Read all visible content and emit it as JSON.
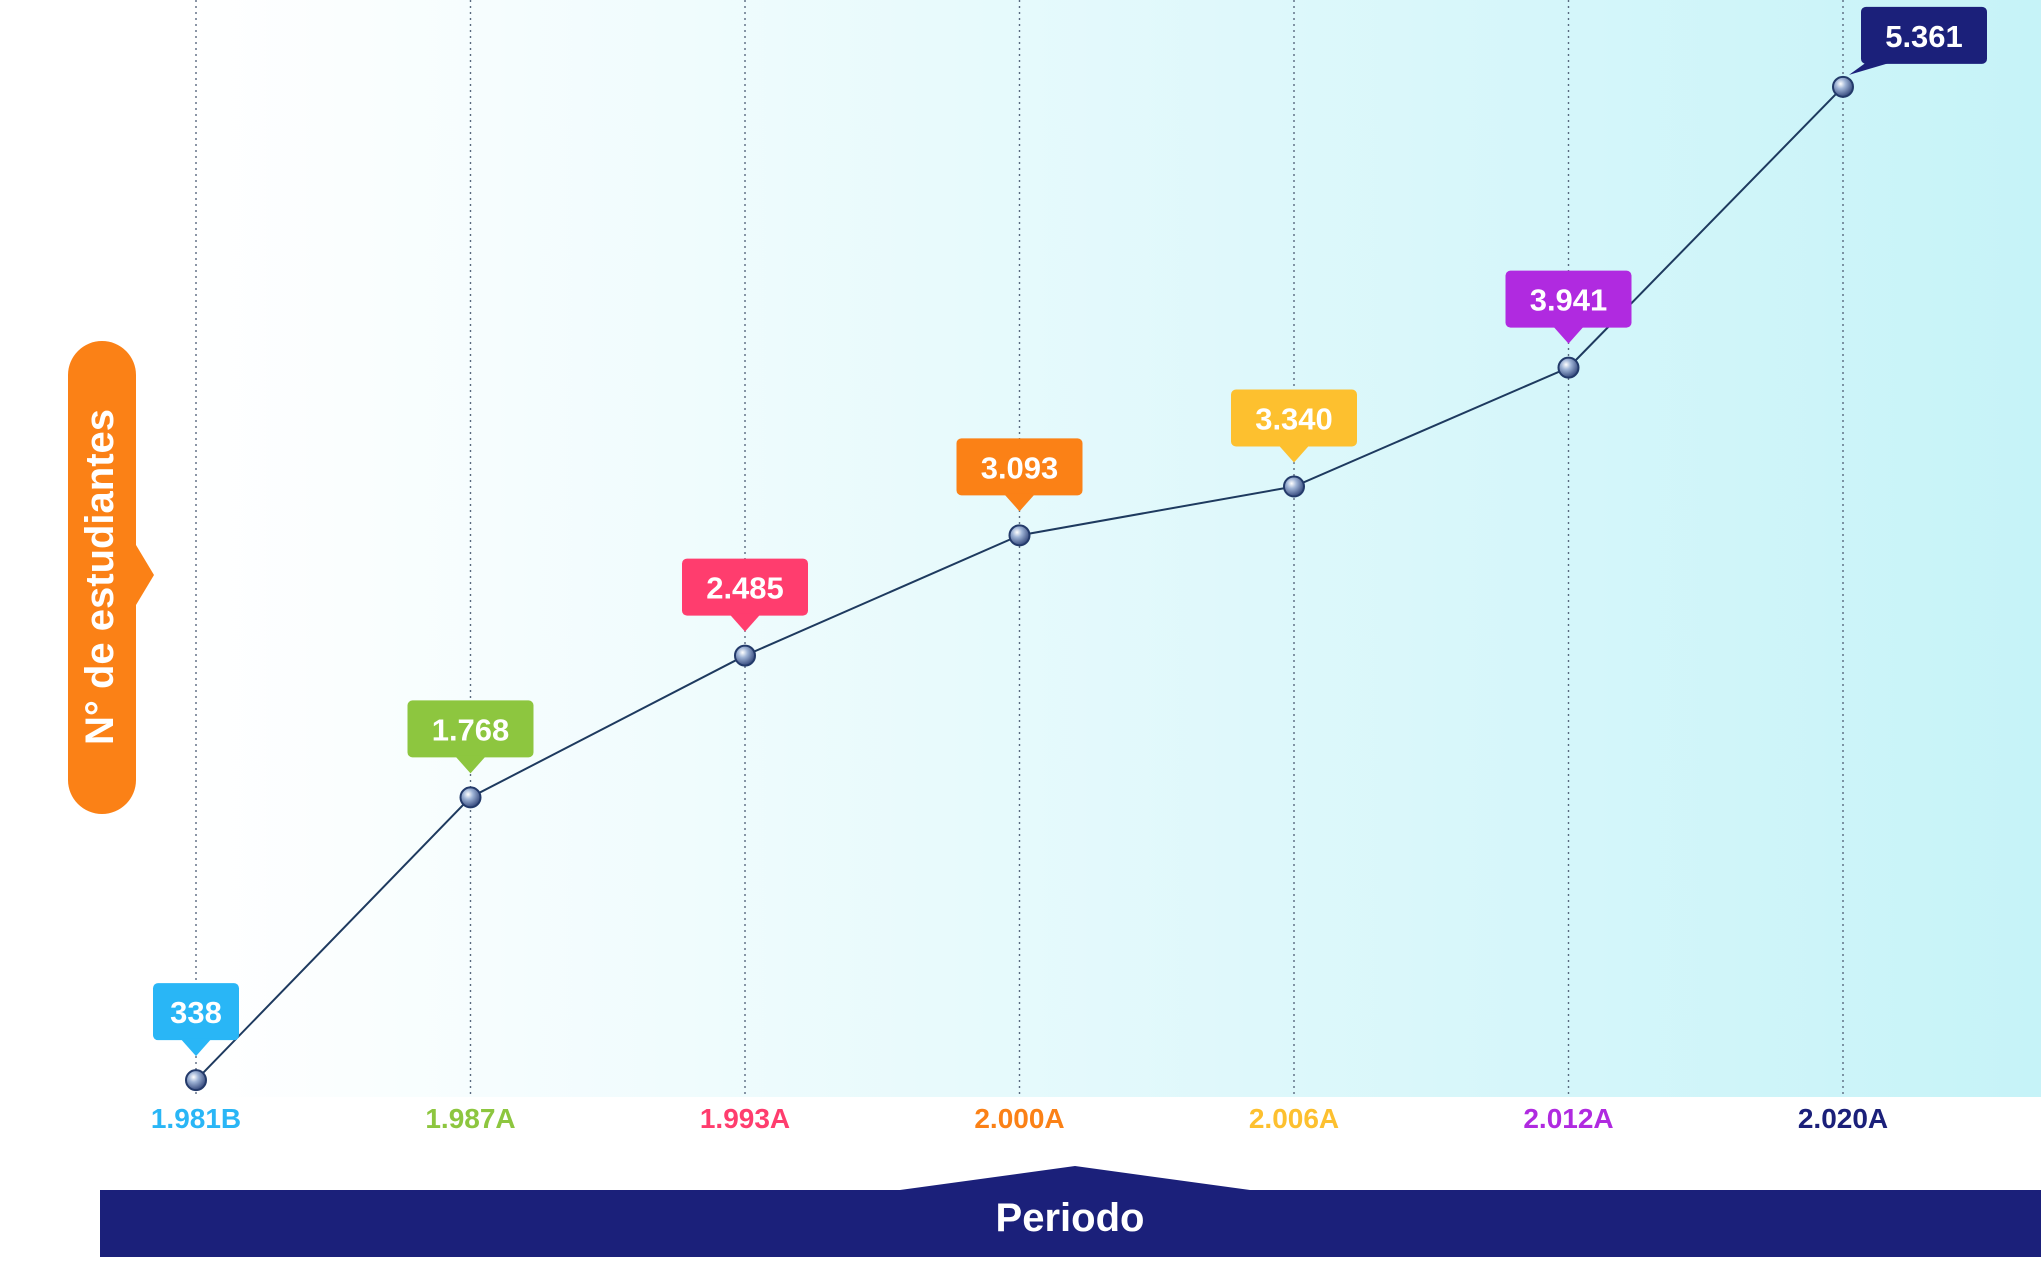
{
  "chart_data": {
    "type": "line",
    "xlabel": "Periodo",
    "ylabel": "N° de estudiantes",
    "ylim": [
      0,
      5800
    ],
    "grid": "vertical-dotted",
    "categories": [
      "1.981B",
      "1.987A",
      "1.993A",
      "2.000A",
      "2.006A",
      "2.012A",
      "2.020A"
    ],
    "values": [
      338,
      1768,
      2485,
      3093,
      3340,
      3941,
      5361
    ],
    "value_labels": [
      "338",
      "1.768",
      "2.485",
      "3.093",
      "3.340",
      "3.941",
      "5.361"
    ],
    "category_colors": [
      "#29b6f6",
      "#8dc63f",
      "#ff3d6e",
      "#fb8116",
      "#fdc02f",
      "#b02ae0",
      "#1b207a"
    ],
    "line_color": "#1e3a5f",
    "ylabel_color": "#fb8116",
    "xlabel_color": "#1b207a"
  }
}
